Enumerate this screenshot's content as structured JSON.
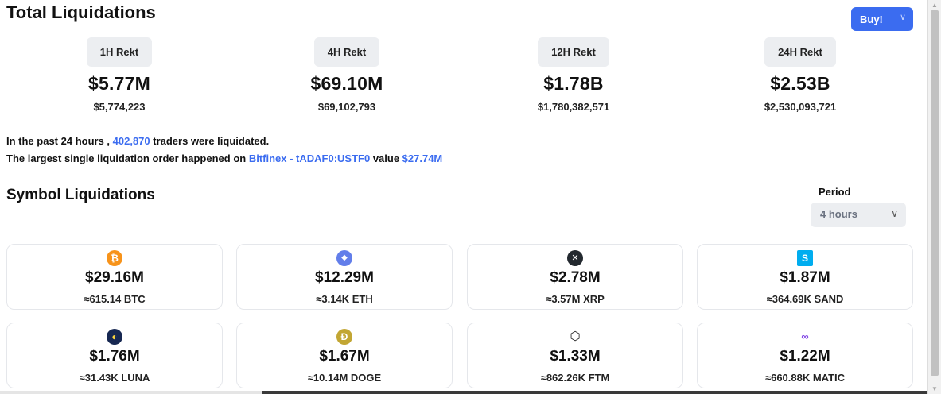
{
  "header": {
    "title": "Total Liquidations",
    "buy_label": "Buy!",
    "buy_chevron": "∨"
  },
  "rekt": [
    {
      "label": "1H Rekt",
      "big": "$5.77M",
      "exact": "$5,774,223"
    },
    {
      "label": "4H Rekt",
      "big": "$69.10M",
      "exact": "$69,102,793"
    },
    {
      "label": "12H Rekt",
      "big": "$1.78B",
      "exact": "$1,780,382,571"
    },
    {
      "label": "24H Rekt",
      "big": "$2.53B",
      "exact": "$2,530,093,721"
    }
  ],
  "summary": {
    "line1_prefix": "In the past 24 hours , ",
    "traders": "402,870",
    "line1_suffix": " traders were liquidated.",
    "line2_prefix": "The largest single liquidation order happened on ",
    "exchange_pair": "Bitfinex - tADAF0:USTF0",
    "line2_middle": " value ",
    "value": "$27.74M"
  },
  "symbols": {
    "title": "Symbol Liquidations",
    "period_label": "Period",
    "period_value": "4 hours",
    "period_chevron": "∨",
    "cards": [
      {
        "icon": "bitcoin-icon",
        "glyph": "₿",
        "color": "#f7931a",
        "value": "$29.16M",
        "amount": "≈615.14 BTC"
      },
      {
        "icon": "ethereum-icon",
        "glyph": "◆",
        "color": "#627eea",
        "value": "$12.29M",
        "amount": "≈3.14K ETH"
      },
      {
        "icon": "xrp-icon",
        "glyph": "✕",
        "color": "#23292f",
        "value": "$2.78M",
        "amount": "≈3.57M XRP"
      },
      {
        "icon": "sand-icon",
        "glyph": "S",
        "color": "#00adef",
        "value": "$1.87M",
        "amount": "≈364.69K SAND"
      },
      {
        "icon": "luna-icon",
        "glyph": "◐",
        "color": "#172852",
        "value": "$1.76M",
        "amount": "≈31.43K LUNA"
      },
      {
        "icon": "doge-icon",
        "glyph": "Ð",
        "color": "#c2a633",
        "value": "$1.67M",
        "amount": "≈10.14M DOGE"
      },
      {
        "icon": "fantom-icon",
        "glyph": "⬡",
        "color": "#ffffff",
        "value": "$1.33M",
        "amount": "≈862.26K FTM"
      },
      {
        "icon": "polygon-icon",
        "glyph": "∞",
        "color": "#ffffff",
        "value": "$1.22M",
        "amount": "≈660.88K MATIC"
      }
    ]
  },
  "scrollbar": {
    "up": "▲",
    "down": "▼"
  }
}
